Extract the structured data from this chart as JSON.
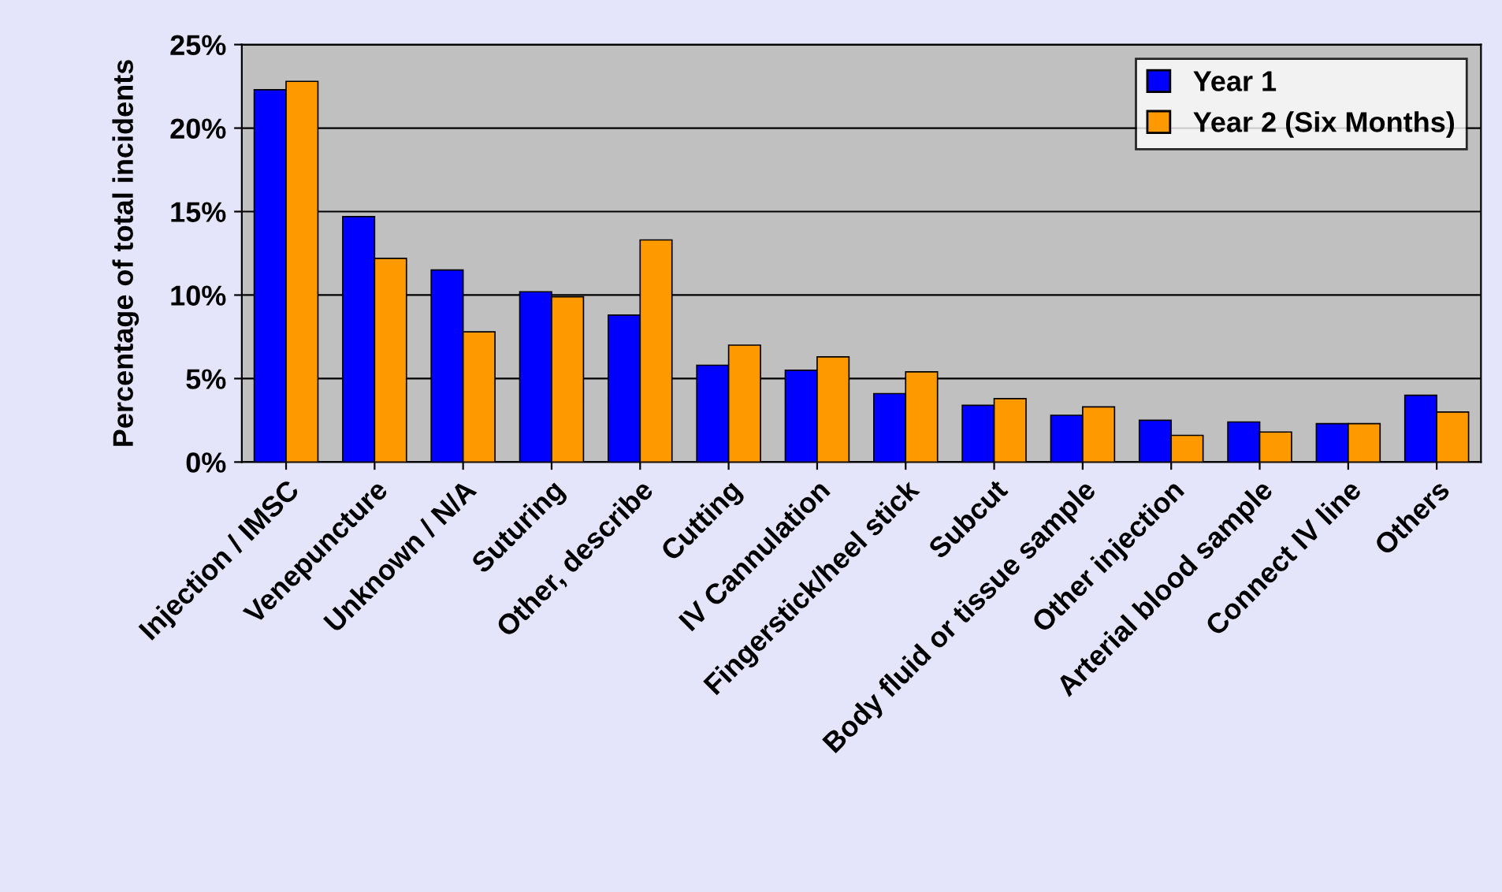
{
  "chart_data": {
    "type": "bar",
    "ylabel": "Percentage of total incidents",
    "categories": [
      "Injection / IMSC",
      "Venepuncture",
      "Unknown / N/A",
      "Suturing",
      "Other, describe",
      "Cutting",
      "IV Cannulation",
      "Fingerstick/heel stick",
      "Subcut",
      "Body fluid or tissue sample",
      "Other injection",
      "Arterial blood sample",
      "Connect IV line",
      "Others"
    ],
    "series": [
      {
        "name": "Year 1",
        "color": "#0000ff",
        "values": [
          22.3,
          14.7,
          11.5,
          10.2,
          8.8,
          5.8,
          5.5,
          4.1,
          3.4,
          2.8,
          2.5,
          2.4,
          2.3,
          4.0
        ]
      },
      {
        "name": "Year 2 (Six Months)",
        "color": "#ff9900",
        "values": [
          22.8,
          12.2,
          7.8,
          9.9,
          13.3,
          7.0,
          6.3,
          5.4,
          3.8,
          3.3,
          1.6,
          1.8,
          2.3,
          3.0
        ]
      }
    ],
    "ylim": [
      0,
      25
    ],
    "yticks": [
      {
        "value": 0,
        "label": "0%"
      },
      {
        "value": 5,
        "label": "5%"
      },
      {
        "value": 10,
        "label": "10%"
      },
      {
        "value": 15,
        "label": "15%"
      },
      {
        "value": 20,
        "label": "20%"
      },
      {
        "value": 25,
        "label": "25%"
      }
    ],
    "grid": "y",
    "legend": "top right"
  }
}
